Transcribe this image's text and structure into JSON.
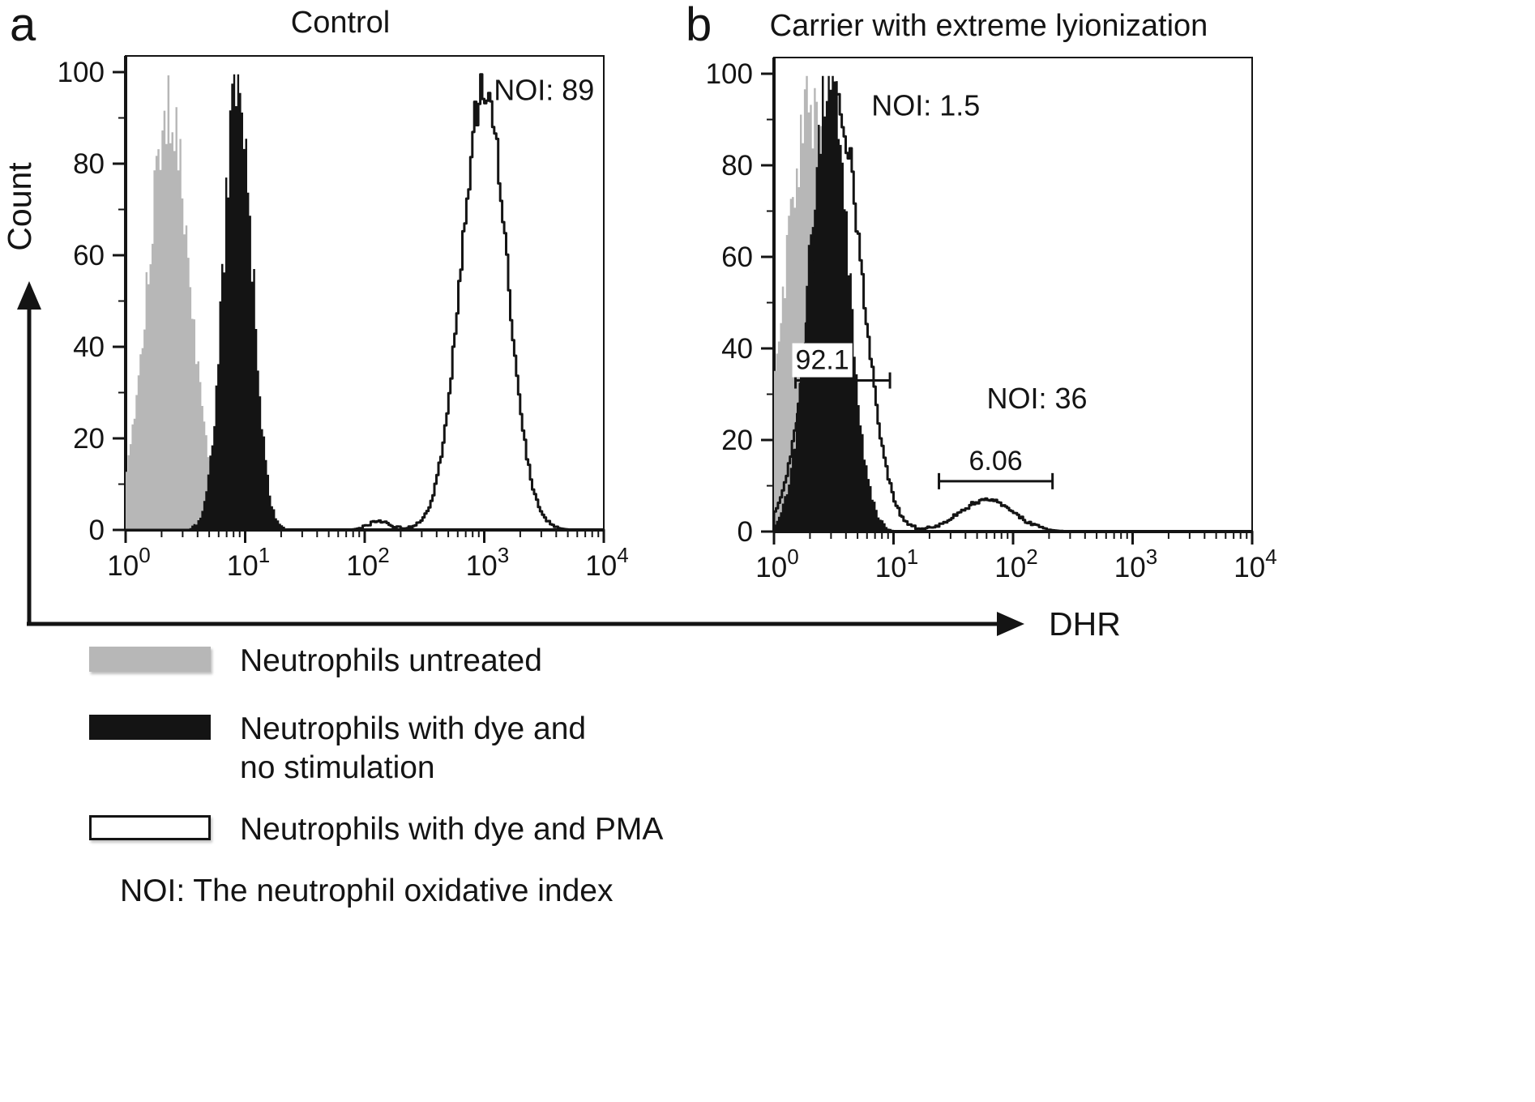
{
  "figure": {
    "panels": [
      {
        "letter": "a",
        "title": "Control"
      },
      {
        "letter": "b",
        "title": "Carrier with extreme lyionization"
      }
    ],
    "y_axis_label": "Count",
    "x_axis_label": "DHR",
    "footnote": "NOI: The neutrophil oxidative index"
  },
  "legend": {
    "items": [
      {
        "label": "Neutrophils untreated",
        "swatch": "gray"
      },
      {
        "label": "Neutrophils with dye and\nno stimulation",
        "swatch": "black"
      },
      {
        "label": "Neutrophils with dye and PMA",
        "swatch": "open"
      }
    ]
  },
  "colors": {
    "gray_fill": "#b7b7b7",
    "black_fill": "#141414",
    "background": "#ffffff"
  },
  "chart_data": [
    {
      "type": "area",
      "subtype": "flow-cytometry-histogram",
      "panel": "a",
      "title": "Control",
      "xlabel": "DHR",
      "ylabel": "Count",
      "x_scale": "log10",
      "xtick_exponents": [
        0,
        1,
        2,
        3,
        4
      ],
      "ylim": [
        0,
        100
      ],
      "yticks": [
        0,
        20,
        40,
        60,
        80,
        100
      ],
      "series": [
        {
          "name": "Neutrophils untreated",
          "style": "gray",
          "peaks": [
            {
              "center_log10": 0.36,
              "sigma_log10": 0.18,
              "height": 91
            }
          ]
        },
        {
          "name": "Neutrophils with dye and no stimulation",
          "style": "black",
          "peaks": [
            {
              "center_log10": 0.94,
              "sigma_log10": 0.12,
              "height": 98
            }
          ]
        },
        {
          "name": "Neutrophils with dye and PMA",
          "style": "open",
          "peaks": [
            {
              "center_log10": 3.0,
              "sigma_log10": 0.19,
              "height": 97
            },
            {
              "center_log10": 2.12,
              "sigma_log10": 0.09,
              "height": 2
            }
          ]
        }
      ],
      "annotations": [
        {
          "text": "NOI: 89",
          "x_log10": 3.5,
          "y": 96
        }
      ],
      "gates": []
    },
    {
      "type": "area",
      "subtype": "flow-cytometry-histogram",
      "panel": "b",
      "title": "Carrier with extreme lyionization",
      "xlabel": "DHR",
      "ylabel": "Count",
      "x_scale": "log10",
      "xtick_exponents": [
        0,
        1,
        2,
        3,
        4
      ],
      "ylim": [
        0,
        100
      ],
      "yticks": [
        0,
        20,
        40,
        60,
        80,
        100
      ],
      "series": [
        {
          "name": "Neutrophils untreated",
          "style": "gray",
          "peaks": [
            {
              "center_log10": 0.3,
              "sigma_log10": 0.2,
              "height": 93
            }
          ]
        },
        {
          "name": "Neutrophils with dye and no stimulation",
          "style": "black",
          "peaks": [
            {
              "center_log10": 0.46,
              "sigma_log10": 0.16,
              "height": 99
            }
          ]
        },
        {
          "name": "Neutrophils with dye and PMA",
          "style": "open",
          "peaks": [
            {
              "center_log10": 0.53,
              "sigma_log10": 0.21,
              "height": 92
            },
            {
              "center_log10": 1.78,
              "sigma_log10": 0.22,
              "height": 7
            }
          ]
        }
      ],
      "annotations": [
        {
          "text": "NOI: 1.5",
          "x_log10": 1.27,
          "y": 93
        },
        {
          "text": "NOI: 36",
          "x_log10": 2.2,
          "y": 29
        }
      ],
      "gates": [
        {
          "label": "92.1",
          "x1_log10": 0.18,
          "x2_log10": 0.97,
          "y": 33,
          "label_anchor": "start"
        },
        {
          "label": "6.06",
          "x1_log10": 1.38,
          "x2_log10": 2.33,
          "y": 11,
          "label_anchor": "middle"
        }
      ]
    }
  ]
}
